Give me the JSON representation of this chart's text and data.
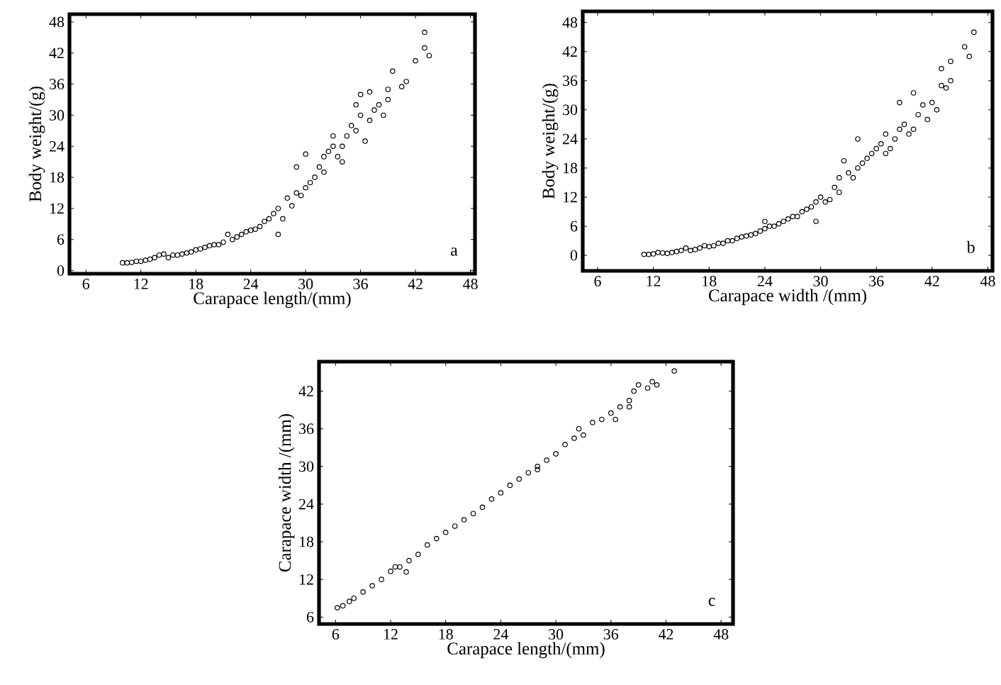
{
  "chart_data": [
    {
      "type": "scatter",
      "xlabel": "Carapace length/(mm)",
      "ylabel": "Body weight/(g)",
      "marker": "circle",
      "annotations": [
        "a"
      ],
      "xlim": [
        4.2,
        48.5
      ],
      "ylim": [
        -0.6,
        49.5
      ],
      "xticks": [
        6,
        12,
        18,
        24,
        30,
        36,
        42,
        48
      ],
      "yticks": [
        0,
        6,
        12,
        18,
        24,
        30,
        36,
        42,
        48
      ],
      "series": [
        {
          "color": "#000000",
          "x": [
            10,
            10.5,
            11,
            11.5,
            12,
            12.5,
            13,
            13.5,
            14,
            14.5,
            15,
            15.5,
            16,
            16.5,
            17,
            17.5,
            18,
            18.5,
            19,
            19.5,
            20,
            20.5,
            21,
            21.5,
            22,
            22.5,
            23,
            23.5,
            24,
            24.5,
            25,
            25.5,
            26,
            26.5,
            27,
            27,
            27.5,
            28,
            28.5,
            29,
            29,
            29.5,
            30,
            30,
            30.5,
            31,
            31.5,
            32,
            32,
            32.5,
            33,
            33,
            33.5,
            34,
            34,
            34.5,
            35,
            35.5,
            35.5,
            36,
            36,
            36.5,
            37,
            37,
            37.5,
            38,
            38.5,
            39,
            39,
            39.5,
            40.5,
            41,
            42,
            43,
            43,
            43.5
          ],
          "values": [
            1.5,
            1.5,
            1.6,
            1.8,
            1.8,
            2,
            2.2,
            2.5,
            3,
            3.2,
            2.5,
            3,
            3,
            3.2,
            3.4,
            3.6,
            4,
            4.2,
            4.5,
            4.8,
            5,
            5,
            5.5,
            7,
            6,
            6.5,
            7,
            7.5,
            7.8,
            8,
            8.5,
            9.5,
            10,
            11,
            12,
            7,
            10,
            14,
            12.5,
            15,
            20,
            14.5,
            16,
            22.5,
            17,
            18,
            20,
            22,
            19,
            23,
            24,
            26,
            22,
            24,
            21,
            26,
            28,
            27,
            32,
            30,
            34,
            25,
            29,
            34.5,
            31,
            32,
            30,
            33,
            35,
            38.5,
            35.5,
            36.5,
            40.5,
            46,
            43,
            41.5
          ]
        }
      ]
    },
    {
      "type": "scatter",
      "xlabel": "Carapace  width /(mm)",
      "ylabel": "Body weight/(g)",
      "marker": "circle",
      "annotations": [
        "b"
      ],
      "xlim": [
        4.4,
        48.5
      ],
      "ylim": [
        -3.2,
        50.3
      ],
      "xticks": [
        6,
        12,
        18,
        24,
        30,
        36,
        42,
        48
      ],
      "yticks": [
        0,
        6,
        12,
        18,
        24,
        30,
        36,
        42,
        48
      ],
      "series": [
        {
          "color": "#000000",
          "x": [
            11,
            11.5,
            12,
            12.5,
            13,
            13.5,
            14,
            14.5,
            15,
            15.5,
            16,
            16.5,
            17,
            17.5,
            18,
            18.5,
            19,
            19.5,
            20,
            20.5,
            21,
            21.5,
            22,
            22.5,
            23,
            23.5,
            24,
            24,
            24.5,
            25,
            25.5,
            26,
            26.5,
            27,
            27.5,
            28,
            28.5,
            29,
            29.5,
            29.5,
            30,
            30.5,
            31,
            31.5,
            32,
            32,
            32.5,
            33,
            33.5,
            34,
            34,
            34.5,
            35,
            35.5,
            36,
            36.5,
            37,
            37,
            37.5,
            38,
            38.5,
            38.5,
            39,
            39.5,
            40,
            40,
            40.5,
            41,
            41.5,
            42,
            42.5,
            43,
            43,
            43.5,
            44,
            44,
            45.5,
            46,
            46.5
          ],
          "values": [
            0.2,
            0.2,
            0.3,
            0.6,
            0.5,
            0.4,
            0.6,
            0.8,
            1,
            1.5,
            1,
            1.2,
            1.5,
            2,
            1.8,
            2,
            2.5,
            2.5,
            3,
            3,
            3.5,
            3.8,
            4,
            4.2,
            4.5,
            5,
            5.5,
            7,
            6,
            6,
            6.5,
            7,
            7.5,
            8,
            8,
            9,
            9.5,
            10,
            7,
            11,
            12,
            11,
            11.5,
            14,
            13,
            16,
            19.5,
            17,
            16,
            18,
            24,
            19,
            20,
            21,
            22,
            23,
            21,
            25,
            22,
            24,
            26,
            31.5,
            27,
            25,
            33.5,
            26,
            29,
            31,
            28,
            31.5,
            30,
            38.5,
            35,
            34.5,
            40,
            36,
            43,
            41,
            46
          ]
        }
      ]
    },
    {
      "type": "scatter",
      "xlabel": "Carapace length/(mm)",
      "ylabel": "Carapace  width /(mm)",
      "marker": "circle",
      "annotations": [
        "c"
      ],
      "xlim": [
        4.2,
        49.3
      ],
      "ylim": [
        4.9,
        46.7
      ],
      "xticks": [
        6,
        12,
        18,
        24,
        30,
        36,
        42,
        48
      ],
      "yticks": [
        6,
        12,
        18,
        24,
        30,
        36,
        42
      ],
      "series": [
        {
          "color": "#000000",
          "x": [
            6.2,
            6.8,
            7.5,
            8,
            9,
            10,
            11,
            12,
            12.5,
            13,
            13.7,
            14,
            15,
            16,
            17,
            18,
            19,
            20,
            21,
            22,
            23,
            24,
            25,
            26,
            27,
            28,
            28,
            29,
            30,
            31,
            32,
            32.5,
            33,
            34,
            35,
            36,
            36.5,
            37,
            38,
            38,
            38.5,
            39,
            40,
            40.5,
            41,
            42.9
          ],
          "values": [
            7.5,
            7.8,
            8.5,
            9,
            10,
            11,
            12,
            13.3,
            14,
            14,
            13.2,
            15,
            16,
            17.5,
            18.5,
            19.5,
            20.5,
            21.5,
            22.5,
            23.5,
            24.8,
            25.8,
            27,
            28,
            29,
            30,
            29.5,
            31,
            32,
            33.5,
            34.5,
            36,
            35,
            37,
            37.5,
            38.5,
            37.5,
            39.5,
            40.5,
            39.5,
            42,
            43,
            42.5,
            43.5,
            43,
            45.2
          ]
        }
      ]
    }
  ]
}
